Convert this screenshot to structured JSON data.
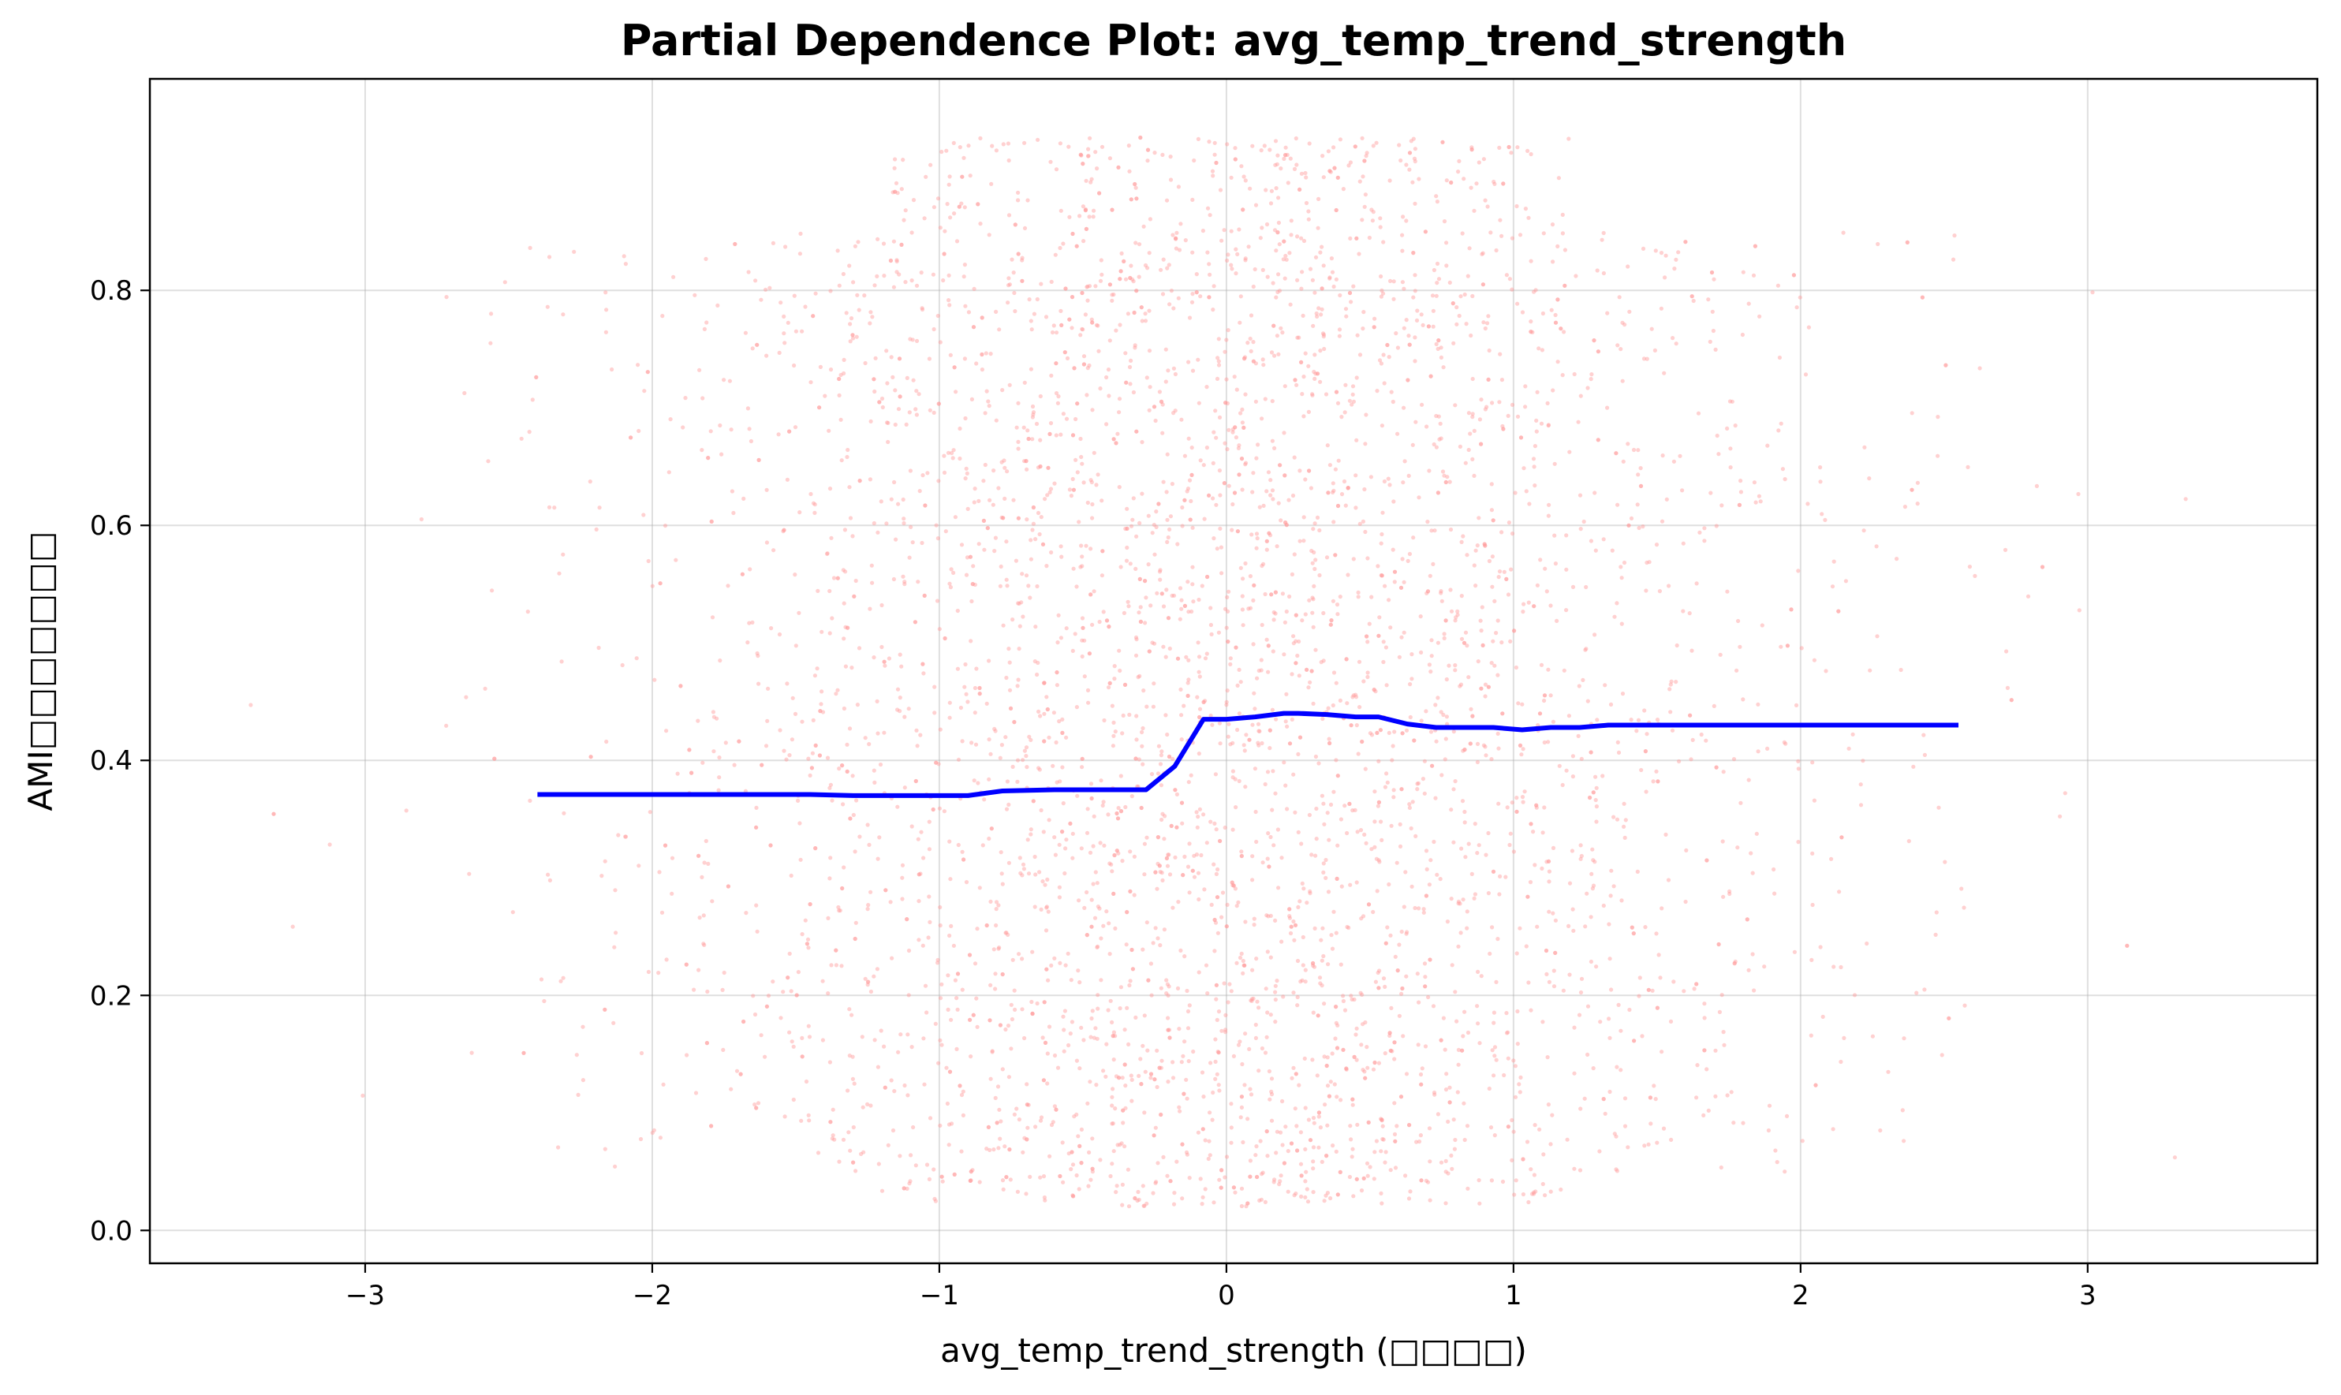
{
  "chart_data": {
    "type": "line",
    "title": "Partial Dependence Plot: avg_temp_trend_strength",
    "xlabel": "avg_temp_trend_strength (□□□□)",
    "ylabel": "AMI□□□□□□□",
    "xlim": [
      -3.75,
      3.8
    ],
    "ylim": [
      -0.028,
      0.98
    ],
    "x_ticks": [
      -3,
      -2,
      -1,
      0,
      1,
      2,
      3
    ],
    "x_tick_labels": [
      "−3",
      "−2",
      "−1",
      "0",
      "1",
      "2",
      "3"
    ],
    "y_ticks": [
      0.0,
      0.2,
      0.4,
      0.6,
      0.8
    ],
    "y_tick_labels": [
      "0.0",
      "0.2",
      "0.4",
      "0.6",
      "0.8"
    ],
    "grid": true,
    "legend": "none",
    "series": [
      {
        "kind": "line",
        "color": "#0000ff",
        "x": [
          -2.4,
          -2.2,
          -2.0,
          -1.8,
          -1.6,
          -1.45,
          -1.3,
          -1.1,
          -0.9,
          -0.78,
          -0.6,
          -0.45,
          -0.28,
          -0.18,
          -0.08,
          0.0,
          0.1,
          0.2,
          0.25,
          0.35,
          0.45,
          0.53,
          0.63,
          0.73,
          0.82,
          0.93,
          1.03,
          1.13,
          1.23,
          1.33,
          1.5,
          1.8,
          2.1,
          2.4,
          2.55
        ],
        "y": [
          0.371,
          0.371,
          0.371,
          0.371,
          0.371,
          0.371,
          0.37,
          0.37,
          0.37,
          0.374,
          0.375,
          0.375,
          0.375,
          0.395,
          0.435,
          0.435,
          0.437,
          0.44,
          0.44,
          0.439,
          0.437,
          0.437,
          0.431,
          0.428,
          0.428,
          0.428,
          0.426,
          0.428,
          0.428,
          0.43,
          0.43,
          0.43,
          0.43,
          0.43,
          0.43
        ]
      },
      {
        "kind": "scatter",
        "color": "#ff9999",
        "n_points": 4500,
        "x_mean": 0.0,
        "x_std": 1.0,
        "y_range": [
          0.02,
          0.93
        ]
      }
    ]
  }
}
